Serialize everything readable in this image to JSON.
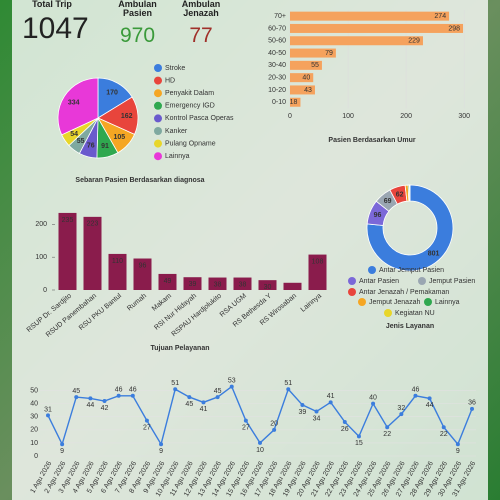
{
  "header": {
    "total_trip": {
      "label": "Total Trip",
      "value": 1047
    },
    "ambulan_pasien": {
      "label": "Ambulan Pasien",
      "value": 970
    },
    "ambulan_jenazah": {
      "label": "Ambulan Jenazah",
      "value": 77
    }
  },
  "chart_data": [
    {
      "type": "pie",
      "title": "Sebaran Pasien Berdasarkan diagnosa",
      "categories": [
        "Stroke",
        "HD",
        "Penyakit Dalam",
        "Emergency IGD",
        "Kontrol Pasca Operas",
        "Kanker",
        "Pulang Opname",
        "Lainnya"
      ],
      "values": [
        170,
        162,
        105,
        91,
        76,
        55,
        54,
        334
      ],
      "colors": [
        "#3b7ddd",
        "#e8453c",
        "#f5a623",
        "#2fa84f",
        "#6a5acd",
        "#7fa9a0",
        "#e8d62a",
        "#e838d8"
      ]
    },
    {
      "type": "hbar",
      "title": "Pasien Berdasarkan Umur",
      "categories": [
        "70+",
        "60-70",
        "50-60",
        "40-50",
        "30-40",
        "20-30",
        "10-20",
        "0-10"
      ],
      "values": [
        274,
        298,
        229,
        79,
        55,
        40,
        43,
        18
      ],
      "color": "#f5a25d",
      "xlim": [
        0,
        310
      ],
      "xticks": [
        0,
        100,
        200,
        300
      ]
    },
    {
      "type": "bar",
      "title": "Tujuan Pelayanan",
      "categories": [
        "RSUP Dr. Sardjito",
        "RSUD Panembahan",
        "RSU PKU Bantul",
        "Rumah",
        "Makam",
        "RSI Nur Hidayah",
        "RSPAU Hardjolukito",
        "RSA UGM",
        "RS Bethesda Y",
        "RS Wirosaban",
        "Lainnya"
      ],
      "values": [
        235,
        223,
        110,
        96,
        49,
        39,
        38,
        38,
        30,
        22,
        108
      ],
      "value_labels": [
        "235",
        "223",
        "110",
        "96",
        "49",
        "39",
        "38",
        "38",
        "30",
        null,
        "108"
      ],
      "color": "#8a1c4c",
      "ylim": [
        0,
        250
      ],
      "yticks": [
        0,
        100,
        200
      ]
    },
    {
      "type": "donut",
      "title": "Jenis Layanan",
      "categories": [
        "Antar Jemput Pasien",
        "Antar Pasien",
        "Jemput Pasien",
        "Antar Jenazah / Pemakaman",
        "Jemput Jenazah",
        "Lainnya",
        "Kegiatan NU"
      ],
      "values": [
        801,
        96,
        69,
        62,
        12,
        5,
        2
      ],
      "value_labels": [
        "801",
        "96",
        "69",
        "62",
        null,
        null,
        null
      ],
      "colors": [
        "#3b7ddd",
        "#7b68d8",
        "#9aa6b2",
        "#e8453c",
        "#f5a623",
        "#2fa84f",
        "#e8d62a"
      ]
    },
    {
      "type": "line",
      "color": "#3b7ddd",
      "categories": [
        "1 Agu 2026",
        "2 Agu 2026",
        "3 Agu 2026",
        "4 Agu 2026",
        "5 Agu 2026",
        "6 Agu 2026",
        "7 Agu 2026",
        "8 Agu 2026",
        "9 Agu 2026",
        "10 Agu 2026",
        "11 Agu 2026",
        "12 Agu 2026",
        "13 Agu 2026",
        "14 Agu 2026",
        "15 Agu 2026",
        "16 Agu 2026",
        "17 Agu 2026",
        "18 Agu 2026",
        "19 Agu 2026",
        "20 Agu 2026",
        "21 Agu 2026",
        "22 Agu 2026",
        "23 Agu 2026",
        "24 Agu 2026",
        "25 Agu 2026",
        "26 Agu 2026",
        "27 Agu 2026",
        "28 Agu 2026",
        "29 Agu 2026",
        "30 Agu 2026",
        "31 Agu 2026"
      ],
      "values": [
        31,
        9,
        45,
        44,
        42,
        46,
        46,
        27,
        9,
        51,
        45,
        41,
        45,
        53,
        27,
        10,
        20,
        51,
        39,
        34,
        41,
        26,
        15,
        40,
        22,
        32,
        46,
        44,
        22,
        9,
        36
      ],
      "ylim": [
        0,
        55
      ],
      "yticks": [
        0,
        10,
        20,
        30,
        40,
        50
      ]
    }
  ]
}
